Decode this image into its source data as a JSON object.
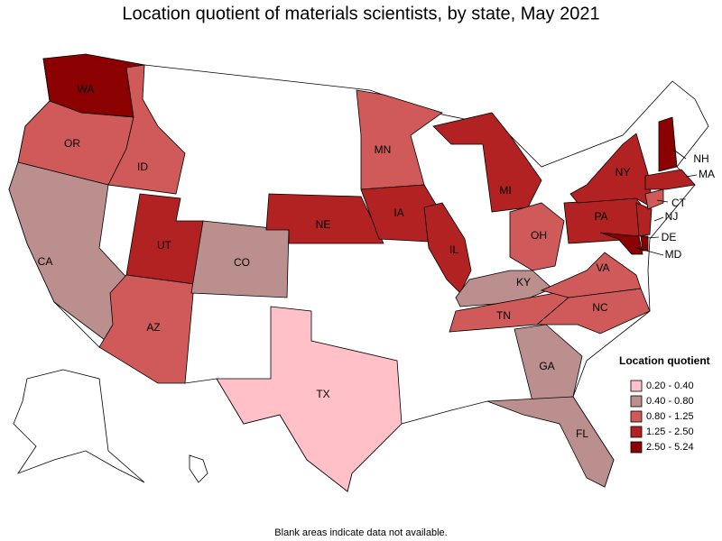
{
  "title": "Location quotient of materials scientists, by state, May 2021",
  "states": [
    {
      "label": "WA",
      "color": "#8b0000"
    },
    {
      "label": "OR",
      "color": "#d05a5a"
    },
    {
      "label": "ID",
      "color": "#d05a5a"
    },
    {
      "label": "CA",
      "color": "#bc8f8f"
    },
    {
      "label": "UT",
      "color": "#b22222"
    },
    {
      "label": "AZ",
      "color": "#d05a5a"
    },
    {
      "label": "CO",
      "color": "#bc8f8f"
    },
    {
      "label": "NE",
      "color": "#b22222"
    },
    {
      "label": "TX",
      "color": "#ffc0c8"
    },
    {
      "label": "MN",
      "color": "#d05a5a"
    },
    {
      "label": "IA",
      "color": "#b22222"
    },
    {
      "label": "IL",
      "color": "#b22222"
    },
    {
      "label": "MI",
      "color": "#b22222"
    },
    {
      "label": "OH",
      "color": "#d05a5a"
    },
    {
      "label": "KY",
      "color": "#bc8f8f"
    },
    {
      "label": "TN",
      "color": "#d05a5a"
    },
    {
      "label": "GA",
      "color": "#bc8f8f"
    },
    {
      "label": "FL",
      "color": "#bc8f8f"
    },
    {
      "label": "NC",
      "color": "#d05a5a"
    },
    {
      "label": "VA",
      "color": "#d05a5a"
    },
    {
      "label": "PA",
      "color": "#b22222"
    },
    {
      "label": "NY",
      "color": "#b22222"
    },
    {
      "label": "NJ",
      "color": "#b22222"
    },
    {
      "label": "DE",
      "color": "#8b0000"
    },
    {
      "label": "MD",
      "color": "#8b0000"
    },
    {
      "label": "CT",
      "color": "#d05a5a"
    },
    {
      "label": "MA",
      "color": "#b22222"
    },
    {
      "label": "NH",
      "color": "#8b0000"
    }
  ],
  "legend": {
    "title": "Location quotient",
    "items": [
      {
        "label": "0.20 - 0.40",
        "color": "#ffc0c8"
      },
      {
        "label": "0.40 - 0.80",
        "color": "#bc8f8f"
      },
      {
        "label": "0.80 - 1.25",
        "color": "#d05a5a"
      },
      {
        "label": "1.25 - 2.50",
        "color": "#b22222"
      },
      {
        "label": "2.50 - 5.24",
        "color": "#8b0000"
      }
    ]
  },
  "footnote": "Blank areas indicate data not available."
}
